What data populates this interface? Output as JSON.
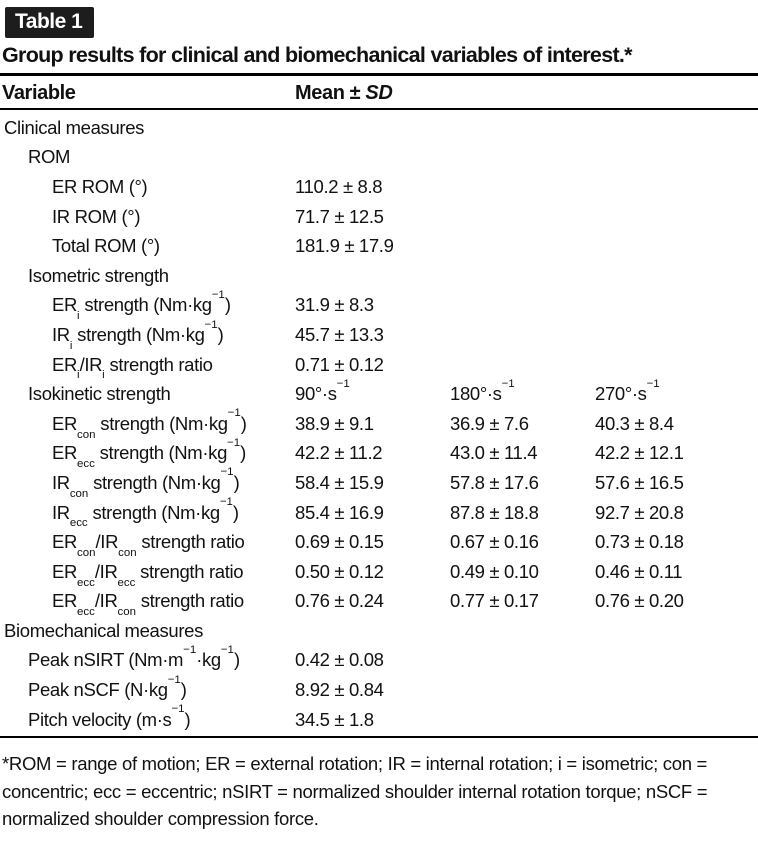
{
  "label": "Table 1",
  "title": "Group results for clinical and biomechanical variables of interest.*",
  "header": {
    "variable": "Variable",
    "mean_sd": [
      {
        "t": "Mean ± "
      },
      {
        "t": "SD",
        "s": "i"
      }
    ]
  },
  "rows": [
    {
      "indent": 0,
      "label": [
        {
          "t": "Clinical measures"
        }
      ],
      "values": []
    },
    {
      "indent": 1,
      "label": [
        {
          "t": "ROM"
        }
      ],
      "values": []
    },
    {
      "indent": 2,
      "label": [
        {
          "t": "ER ROM (°)"
        }
      ],
      "values": [
        [
          {
            "t": "110.2 ± 8.8"
          }
        ]
      ]
    },
    {
      "indent": 2,
      "label": [
        {
          "t": "IR ROM (°)"
        }
      ],
      "values": [
        [
          {
            "t": "71.7 ± 12.5"
          }
        ]
      ]
    },
    {
      "indent": 2,
      "label": [
        {
          "t": "Total ROM (°)"
        }
      ],
      "values": [
        [
          {
            "t": "181.9 ± 17.9"
          }
        ]
      ]
    },
    {
      "indent": 1,
      "label": [
        {
          "t": "Isometric strength"
        }
      ],
      "values": []
    },
    {
      "indent": 2,
      "label": [
        {
          "t": "ER"
        },
        {
          "t": "i",
          "s": "sub"
        },
        {
          "t": " strength (Nm·kg"
        },
        {
          "t": "−1",
          "s": "sup"
        },
        {
          "t": ")"
        }
      ],
      "values": [
        [
          {
            "t": "31.9 ± 8.3"
          }
        ]
      ]
    },
    {
      "indent": 2,
      "label": [
        {
          "t": "IR"
        },
        {
          "t": "i",
          "s": "sub"
        },
        {
          "t": " strength (Nm·kg"
        },
        {
          "t": "−1",
          "s": "sup"
        },
        {
          "t": ")"
        }
      ],
      "values": [
        [
          {
            "t": "45.7 ± 13.3"
          }
        ]
      ]
    },
    {
      "indent": 2,
      "label": [
        {
          "t": "ER"
        },
        {
          "t": "i",
          "s": "sub"
        },
        {
          "t": "/IR"
        },
        {
          "t": "i",
          "s": "sub"
        },
        {
          "t": " strength ratio"
        }
      ],
      "values": [
        [
          {
            "t": "0.71 ± 0.12"
          }
        ]
      ]
    },
    {
      "indent": 1,
      "label": [
        {
          "t": "Isokinetic strength"
        }
      ],
      "values": [
        [
          {
            "t": "90°·s"
          },
          {
            "t": "−1",
            "s": "sup"
          }
        ],
        [
          {
            "t": "180°·s"
          },
          {
            "t": "−1",
            "s": "sup"
          }
        ],
        [
          {
            "t": "270°·s"
          },
          {
            "t": "−1",
            "s": "sup"
          }
        ]
      ]
    },
    {
      "indent": 2,
      "label": [
        {
          "t": "ER"
        },
        {
          "t": "con",
          "s": "sub"
        },
        {
          "t": " strength (Nm·kg"
        },
        {
          "t": "−1",
          "s": "sup"
        },
        {
          "t": ")"
        }
      ],
      "values": [
        [
          {
            "t": "38.9 ± 9.1"
          }
        ],
        [
          {
            "t": "36.9 ± 7.6"
          }
        ],
        [
          {
            "t": "40.3 ± 8.4"
          }
        ]
      ]
    },
    {
      "indent": 2,
      "label": [
        {
          "t": "ER"
        },
        {
          "t": "ecc",
          "s": "sub"
        },
        {
          "t": " strength (Nm·kg"
        },
        {
          "t": "−1",
          "s": "sup"
        },
        {
          "t": ")"
        }
      ],
      "values": [
        [
          {
            "t": "42.2 ± 11.2"
          }
        ],
        [
          {
            "t": "43.0 ± 11.4"
          }
        ],
        [
          {
            "t": "42.2 ± 12.1"
          }
        ]
      ]
    },
    {
      "indent": 2,
      "label": [
        {
          "t": "IR"
        },
        {
          "t": "con",
          "s": "sub"
        },
        {
          "t": " strength (Nm·kg"
        },
        {
          "t": "−1",
          "s": "sup"
        },
        {
          "t": ")"
        }
      ],
      "values": [
        [
          {
            "t": "58.4 ± 15.9"
          }
        ],
        [
          {
            "t": "57.8 ± 17.6"
          }
        ],
        [
          {
            "t": "57.6 ± 16.5"
          }
        ]
      ]
    },
    {
      "indent": 2,
      "label": [
        {
          "t": "IR"
        },
        {
          "t": "ecc",
          "s": "sub"
        },
        {
          "t": " strength (Nm·kg"
        },
        {
          "t": "−1",
          "s": "sup"
        },
        {
          "t": ")"
        }
      ],
      "values": [
        [
          {
            "t": "85.4 ± 16.9"
          }
        ],
        [
          {
            "t": "87.8 ± 18.8"
          }
        ],
        [
          {
            "t": "92.7 ± 20.8"
          }
        ]
      ]
    },
    {
      "indent": 2,
      "label": [
        {
          "t": "ER"
        },
        {
          "t": "con",
          "s": "sub"
        },
        {
          "t": "/IR"
        },
        {
          "t": "con",
          "s": "sub"
        },
        {
          "t": " strength ratio"
        }
      ],
      "values": [
        [
          {
            "t": "0.69 ± 0.15"
          }
        ],
        [
          {
            "t": "0.67 ± 0.16"
          }
        ],
        [
          {
            "t": "0.73 ± 0.18"
          }
        ]
      ]
    },
    {
      "indent": 2,
      "label": [
        {
          "t": "ER"
        },
        {
          "t": "ecc",
          "s": "sub"
        },
        {
          "t": "/IR"
        },
        {
          "t": "ecc",
          "s": "sub"
        },
        {
          "t": " strength ratio"
        }
      ],
      "values": [
        [
          {
            "t": "0.50 ± 0.12"
          }
        ],
        [
          {
            "t": "0.49 ± 0.10"
          }
        ],
        [
          {
            "t": "0.46 ± 0.11"
          }
        ]
      ]
    },
    {
      "indent": 2,
      "label": [
        {
          "t": "ER"
        },
        {
          "t": "ecc",
          "s": "sub"
        },
        {
          "t": "/IR"
        },
        {
          "t": "con",
          "s": "sub"
        },
        {
          "t": " strength ratio"
        }
      ],
      "values": [
        [
          {
            "t": "0.76 ± 0.24"
          }
        ],
        [
          {
            "t": "0.77 ± 0.17"
          }
        ],
        [
          {
            "t": "0.76 ± 0.20"
          }
        ]
      ]
    },
    {
      "indent": 0,
      "label": [
        {
          "t": "Biomechanical measures"
        }
      ],
      "values": []
    },
    {
      "indent": 1,
      "label": [
        {
          "t": "Peak nSIRT (Nm·m"
        },
        {
          "t": "−1",
          "s": "sup"
        },
        {
          "t": "·kg"
        },
        {
          "t": "−1",
          "s": "sup"
        },
        {
          "t": ")"
        }
      ],
      "values": [
        [
          {
            "t": "0.42 ± 0.08"
          }
        ]
      ]
    },
    {
      "indent": 1,
      "label": [
        {
          "t": "Peak nSCF (N·kg"
        },
        {
          "t": "−1",
          "s": "sup"
        },
        {
          "t": ")"
        }
      ],
      "values": [
        [
          {
            "t": "8.92 ± 0.84"
          }
        ]
      ]
    },
    {
      "indent": 1,
      "label": [
        {
          "t": "Pitch velocity (m·s"
        },
        {
          "t": "−1",
          "s": "sup"
        },
        {
          "t": ")"
        }
      ],
      "values": [
        [
          {
            "t": "34.5 ± 1.8"
          }
        ]
      ]
    }
  ],
  "footnote": "*ROM = range of motion; ER = external rotation; IR = internal rotation; i = isometric; con = concentric; ecc = eccentric; nSIRT = normalized shoulder internal rotation torque; nSCF = normalized shoulder compression force.",
  "colors": {
    "badge_background": "#1d1d1d",
    "badge_text": "#ffffff",
    "text": "#111111",
    "rule": "#000000",
    "background": "#ffffff"
  }
}
